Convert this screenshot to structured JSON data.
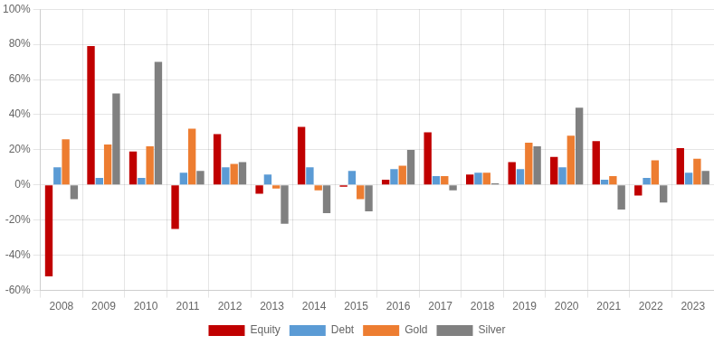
{
  "chart_data": {
    "type": "bar",
    "categories": [
      "2008",
      "2009",
      "2010",
      "2011",
      "2012",
      "2013",
      "2014",
      "2015",
      "2016",
      "2017",
      "2018",
      "2019",
      "2020",
      "2021",
      "2022",
      "2023"
    ],
    "series": [
      {
        "name": "Equity",
        "color": "#C00000",
        "values": [
          -52,
          79,
          19,
          -25,
          29,
          -5,
          33,
          -1,
          3,
          30,
          6,
          13,
          16,
          25,
          -6,
          21
        ]
      },
      {
        "name": "Debt",
        "color": "#5B9BD5",
        "values": [
          10,
          4,
          4,
          7,
          10,
          6,
          10,
          8,
          9,
          5,
          7,
          9,
          10,
          3,
          4,
          7
        ]
      },
      {
        "name": "Gold",
        "color": "#ED7D31",
        "values": [
          26,
          23,
          22,
          32,
          12,
          -2,
          -3,
          -8,
          11,
          5,
          7,
          24,
          28,
          5,
          14,
          15
        ]
      },
      {
        "name": "Silver",
        "color": "#808080",
        "values": [
          -8,
          52,
          70,
          8,
          13,
          -22,
          -16,
          -15,
          20,
          -3,
          1,
          22,
          44,
          -14,
          -10,
          8
        ]
      }
    ],
    "ylim": [
      -60,
      100
    ],
    "yticks": [
      {
        "value": -60,
        "label": "-60%"
      },
      {
        "value": -40,
        "label": "-40%"
      },
      {
        "value": -20,
        "label": "-20%"
      },
      {
        "value": 0,
        "label": "0%"
      },
      {
        "value": 20,
        "label": "20%"
      },
      {
        "value": 40,
        "label": "40%"
      },
      {
        "value": 60,
        "label": "60%"
      },
      {
        "value": 80,
        "label": "80%"
      },
      {
        "value": 100,
        "label": "100%"
      }
    ],
    "grid": true,
    "legend": "bottom"
  }
}
